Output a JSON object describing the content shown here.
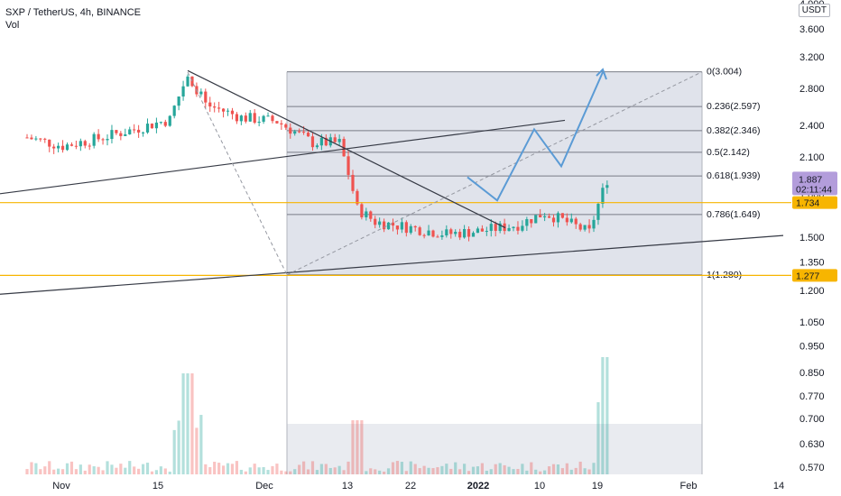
{
  "header": {
    "symbol_line": "SXP / TetherUS, 4h, BINANCE",
    "volume_label": "Vol",
    "currency": "USDT",
    "top_price": "4.000"
  },
  "price_axis": {
    "ticks": [
      "3.600",
      "3.200",
      "2.800",
      "2.400",
      "2.100",
      "1.800",
      "1.500",
      "1.350",
      "1.200",
      "1.050",
      "0.950",
      "0.850",
      "0.770",
      "0.700",
      "0.630",
      "0.570"
    ],
    "tick_values": [
      3.6,
      3.2,
      2.8,
      2.4,
      2.1,
      1.8,
      1.5,
      1.35,
      1.2,
      1.05,
      0.95,
      0.85,
      0.77,
      0.7,
      0.63,
      0.57
    ],
    "scale": "log"
  },
  "time_axis": {
    "labels": [
      "Nov",
      "15",
      "Dec",
      "13",
      "22",
      "2022",
      "10",
      "19",
      "Feb",
      "14"
    ]
  },
  "tags": {
    "last_price": "1.887",
    "countdown": "02:11:44",
    "level_high": "1.734",
    "level_low": "1.277",
    "last_price_color": "#b39ddb",
    "level_color": "#f7b500"
  },
  "fib": {
    "levels": [
      {
        "ratio": 0,
        "label": "0(3.004)",
        "price": 3.004
      },
      {
        "ratio": 0.236,
        "label": "0.236(2.597)",
        "price": 2.597
      },
      {
        "ratio": 0.382,
        "label": "0.382(2.346)",
        "price": 2.346
      },
      {
        "ratio": 0.5,
        "label": "0.5(2.142)",
        "price": 2.142
      },
      {
        "ratio": 0.618,
        "label": "0.618(1.939)",
        "price": 1.939
      },
      {
        "ratio": 0.786,
        "label": "0.786(1.649)",
        "price": 1.649
      },
      {
        "ratio": 1,
        "label": "1(1.280)",
        "price": 1.28
      }
    ],
    "zone_color": "#e0e3eb"
  },
  "chart_data": {
    "type": "candlestick",
    "title": "SXP / TetherUS, 4h, BINANCE",
    "xlabel": "",
    "ylabel": "",
    "y_scale": "log",
    "ylim": [
      0.55,
      4.0
    ],
    "x_range": [
      "Oct 28, 2021",
      "Feb 17, 2022"
    ],
    "x": [
      "Oct 28",
      "Nov 1",
      "Nov 5",
      "Nov 9",
      "Nov 13",
      "Nov 15",
      "Nov 17",
      "Nov 21",
      "Nov 25",
      "Nov 29",
      "Dec 2",
      "Dec 4",
      "Dec 6",
      "Dec 10",
      "Dec 14",
      "Dec 18",
      "Dec 22",
      "Dec 25",
      "Dec 27",
      "Dec 30",
      "Jan 1"
    ],
    "series": [
      {
        "values": [
          2.28,
          2.2,
          2.27,
          2.36,
          2.46,
          2.98,
          2.62,
          2.48,
          2.44,
          2.23,
          2.23,
          1.69,
          1.6,
          1.56,
          1.52,
          1.54,
          1.58,
          1.66,
          1.61,
          1.53,
          1.91
        ]
      }
    ],
    "horizontal_levels": [
      1.734,
      1.277
    ],
    "current_price": 1.887,
    "volume_spikes": [
      "Nov 15",
      "Dec 4",
      "Dec 31"
    ]
  },
  "colors": {
    "up": "#26a69a",
    "down": "#ef5350",
    "projection": "#5b9bd5",
    "trendline": "#363a45"
  }
}
